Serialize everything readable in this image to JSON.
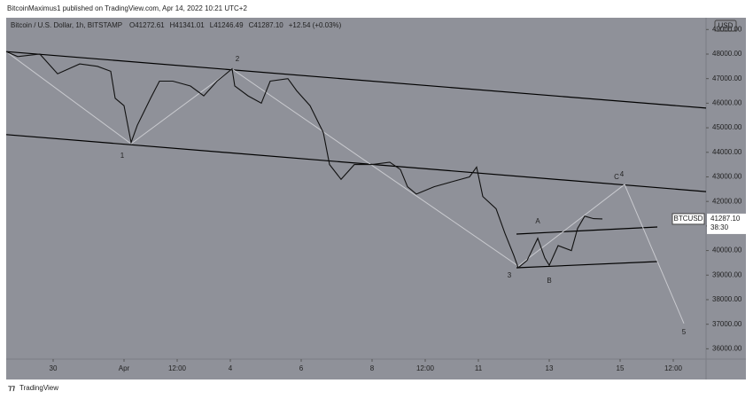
{
  "header": {
    "publisher": "BitcoinMaximus1 published on TradingView.com, Apr 14, 2022 10:21 UTC+2"
  },
  "footer": {
    "brand": "TradingView"
  },
  "chart_data": {
    "type": "line",
    "title": "Bitcoin / U.S. Dollar, 1h, BITSTAMP",
    "ohlc": [
      "O41272.61",
      "H41341.01",
      "L41246.49",
      "C41287.10",
      "+12.54 (+0.03%)"
    ],
    "currency": "USD",
    "series": [
      {
        "name": "BTCUSD",
        "color": "#111111",
        "x": [
          -3.325,
          -3,
          -2.375,
          -1.875,
          -1.25,
          -0.75,
          -0.375,
          -0.25,
          0,
          0.2,
          0.375,
          0.75,
          1,
          1.375,
          1.875,
          2.25,
          2.625,
          3.05,
          3.125,
          3.5,
          3.875,
          4.125,
          4.625,
          4.875,
          5.25,
          5.625,
          5.8,
          6.125,
          6.5,
          7,
          7.5,
          7.8,
          8,
          8.25,
          8.75,
          9.25,
          9.75,
          9.95,
          10.125,
          10.5,
          10.75,
          11,
          11.125,
          11.375,
          11.675,
          11.875,
          12,
          12.25,
          12.625,
          12.8,
          13,
          13.25,
          13.5
        ],
        "values": [
          48100,
          47900,
          48000,
          47200,
          47600,
          47500,
          47300,
          46200,
          45900,
          44400,
          45100,
          46200,
          46900,
          46900,
          46700,
          46300,
          46900,
          47400,
          46700,
          46300,
          46000,
          46900,
          47000,
          46500,
          45900,
          44800,
          43500,
          42900,
          43500,
          43500,
          43600,
          43300,
          42600,
          42300,
          42600,
          42800,
          43000,
          43400,
          42200,
          41700,
          40700,
          39800,
          39300,
          39600,
          40500,
          39700,
          39400,
          40200,
          40000,
          40900,
          41400,
          41300,
          41287.1
        ]
      }
    ],
    "last_price": {
      "value": 41287.1,
      "label": "41287.10"
    },
    "countdown": "38:30",
    "trendlines": [
      {
        "color": "#000000",
        "x": [
          -3.325,
          16.425
        ],
        "values": [
          48100,
          45800
        ]
      },
      {
        "color": "#000000",
        "x": [
          -3.325,
          16.425
        ],
        "values": [
          44720,
          42400
        ]
      },
      {
        "color": "#000000",
        "x": [
          11.075,
          15.05
        ],
        "values": [
          40670,
          40960
        ]
      },
      {
        "color": "#000000",
        "x": [
          11.075,
          15.05
        ],
        "values": [
          39300,
          39550
        ]
      },
      {
        "color": "#c9cacf",
        "x": [
          -3.325,
          0.2,
          3.05,
          11.125,
          14.125,
          15.8
        ],
        "values": [
          48100,
          44350,
          47390,
          39370,
          42690,
          37030
        ]
      }
    ],
    "wave_labels": [
      {
        "text": "1",
        "x": -0.05,
        "y": 43850,
        "color": "#f2d15f"
      },
      {
        "text": "2",
        "x": 3.2,
        "y": 47780,
        "color": "#f2d15f"
      },
      {
        "text": "3",
        "x": 10.875,
        "y": 38970,
        "color": "#f2d15f"
      },
      {
        "text": "4",
        "x": 14.05,
        "y": 43090,
        "color": "#f2d15f"
      },
      {
        "text": "5",
        "x": 15.8,
        "y": 36660,
        "color": "#f2d15f"
      },
      {
        "text": "A",
        "x": 11.675,
        "y": 41180,
        "color": "#d8262b"
      },
      {
        "text": "B",
        "x": 12,
        "y": 38760,
        "color": "#d8262b"
      },
      {
        "text": "C",
        "x": 13.9,
        "y": 42980,
        "color": "#d8262b"
      }
    ],
    "xlim": [
      -3.325,
      16.425
    ],
    "ylim": [
      35580,
      49480
    ],
    "xticks": [
      {
        "value": -2,
        "label": "30"
      },
      {
        "value": 0,
        "label": "Apr"
      },
      {
        "value": 1.5,
        "label": "12:00"
      },
      {
        "value": 3,
        "label": "4"
      },
      {
        "value": 5,
        "label": "6"
      },
      {
        "value": 7,
        "label": "8"
      },
      {
        "value": 8.5,
        "label": "12:00"
      },
      {
        "value": 10,
        "label": "11"
      },
      {
        "value": 12,
        "label": "13"
      },
      {
        "value": 14,
        "label": "15"
      },
      {
        "value": 15.5,
        "label": "12:00"
      }
    ],
    "yticks": [
      {
        "value": 36000,
        "label": "36000.00"
      },
      {
        "value": 37000,
        "label": "37000.00"
      },
      {
        "value": 38000,
        "label": "38000.00"
      },
      {
        "value": 39000,
        "label": "39000.00"
      },
      {
        "value": 40000,
        "label": "40000.00"
      },
      {
        "value": 41000,
        "label": "41000.00"
      },
      {
        "value": 42000,
        "label": "42000.00"
      },
      {
        "value": 43000,
        "label": "43000.00"
      },
      {
        "value": 44000,
        "label": "44000.00"
      },
      {
        "value": 45000,
        "label": "45000.00"
      },
      {
        "value": 46000,
        "label": "46000.00"
      },
      {
        "value": 47000,
        "label": "47000.00"
      },
      {
        "value": 48000,
        "label": "48000.00"
      },
      {
        "value": 49000,
        "label": "49000.00"
      }
    ]
  }
}
